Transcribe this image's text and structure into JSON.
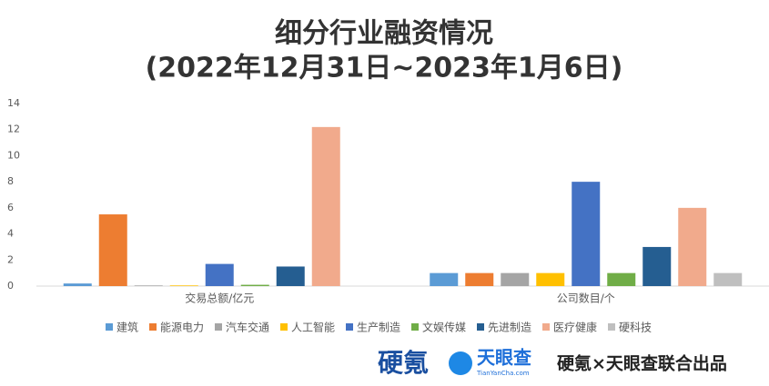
{
  "chart_data": {
    "type": "bar",
    "title": "细分行业融资情况",
    "subtitle": "(2022年12月31日~2023年1月6日)",
    "categories": [
      "交易总额/亿元",
      "公司数目/个"
    ],
    "series": [
      {
        "name": "建筑",
        "color": "#5b9bd5",
        "values": [
          0.2,
          1
        ]
      },
      {
        "name": "能源电力",
        "color": "#ed7d31",
        "values": [
          5.5,
          1
        ]
      },
      {
        "name": "汽车交通",
        "color": "#a5a5a5",
        "values": [
          0.05,
          1
        ]
      },
      {
        "name": "人工智能",
        "color": "#ffc000",
        "values": [
          0.05,
          1
        ]
      },
      {
        "name": "生产制造",
        "color": "#4472c4",
        "values": [
          1.7,
          8
        ]
      },
      {
        "name": "文娱传媒",
        "color": "#70ad47",
        "values": [
          0.1,
          1
        ]
      },
      {
        "name": "先进制造",
        "color": "#255e91",
        "values": [
          1.5,
          3
        ]
      },
      {
        "name": "医疗健康",
        "color": "#f1aa8c",
        "values": [
          12.2,
          6
        ]
      },
      {
        "name": "硬科技",
        "color": "#bfbfbf",
        "values": [
          0,
          1
        ]
      }
    ],
    "ylim": [
      0,
      14
    ],
    "yticks": [
      0,
      2,
      4,
      6,
      8,
      10,
      12,
      14
    ],
    "grid": false
  },
  "footer": {
    "logo1": "硬氪",
    "logo2": "天眼查",
    "logo2_sub": "TianYanCha.com",
    "credit": "硬氪×天眼查联合出品"
  }
}
